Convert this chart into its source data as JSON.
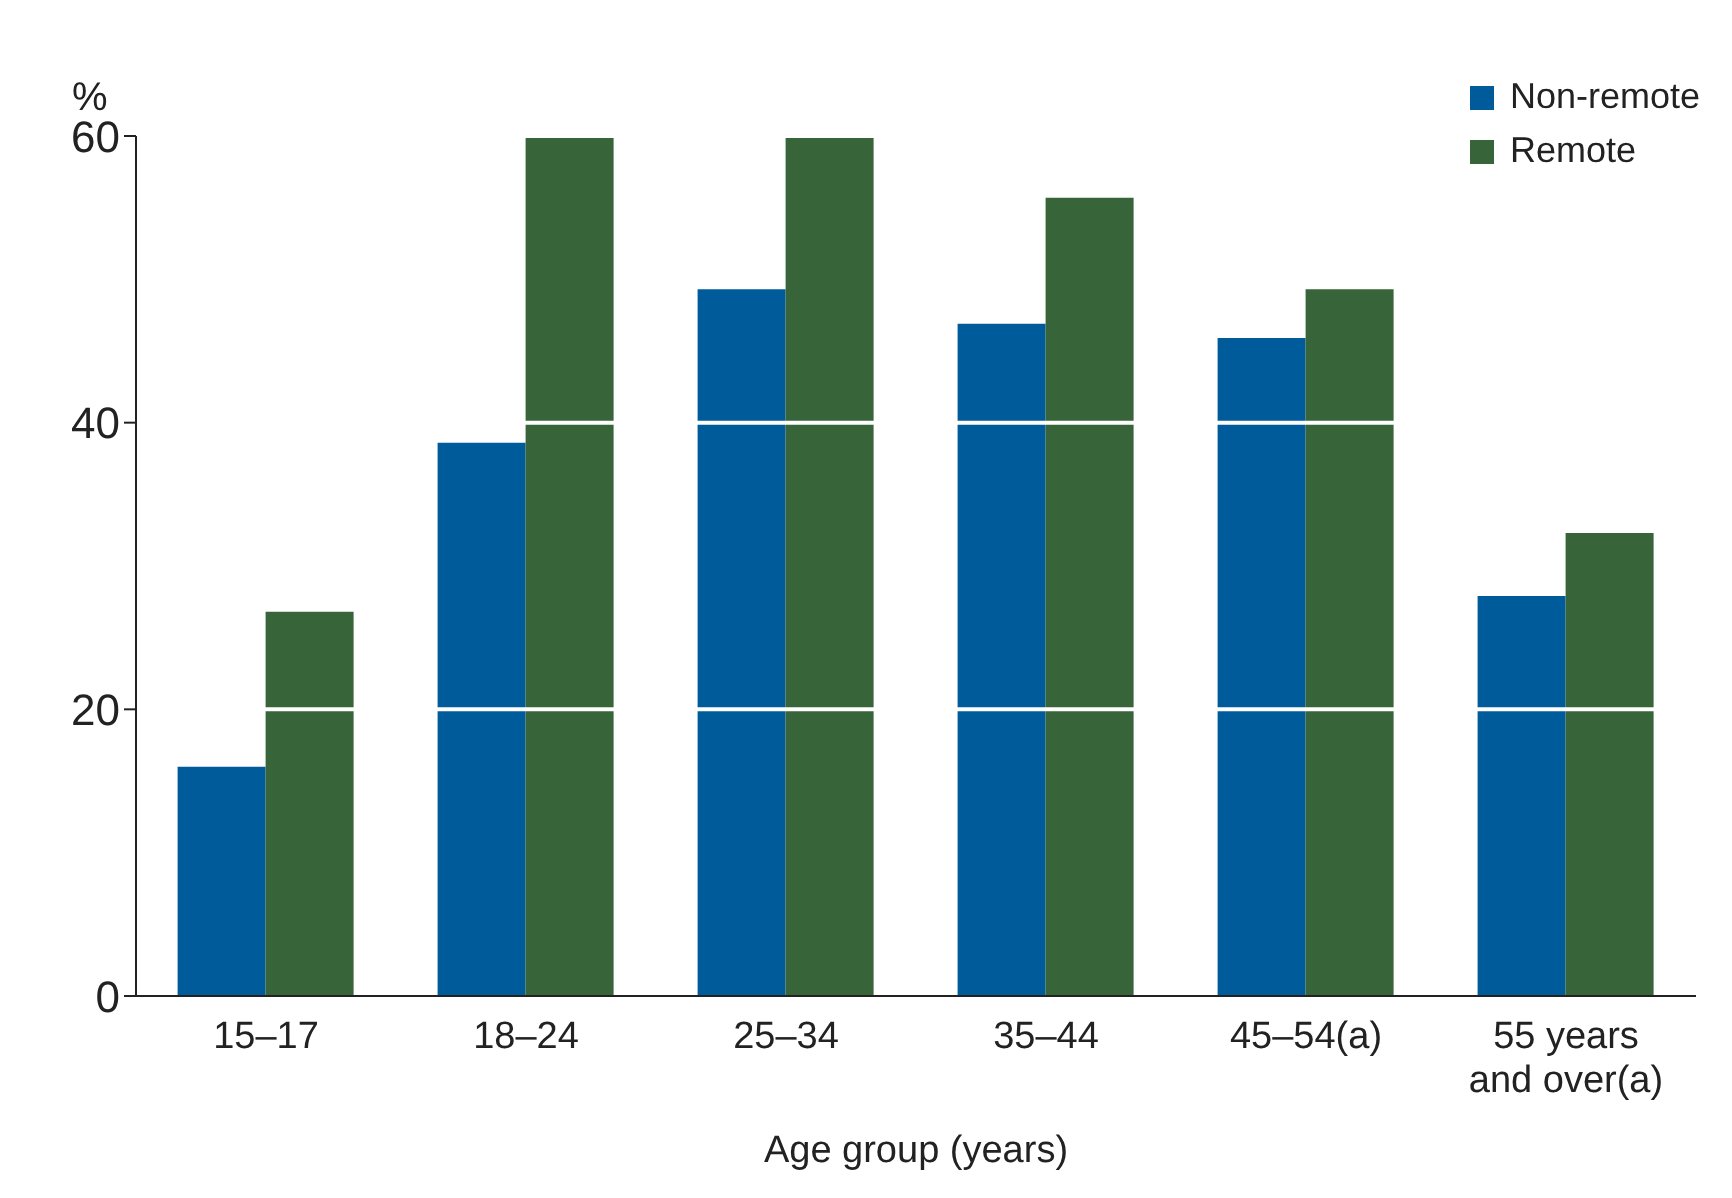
{
  "chart_data": {
    "type": "bar",
    "xlabel": "Age group (years)",
    "ylabel": "%",
    "categories": [
      "15–17",
      "18–24",
      "25–34",
      "35–44",
      "45–54(a)",
      "55 years and over(a)"
    ],
    "series": [
      {
        "name": "Non-remote",
        "color": "#005b9a",
        "values": [
          16,
          38.6,
          49.3,
          46.9,
          45.9,
          27.9
        ]
      },
      {
        "name": "Remote",
        "color": "#376439",
        "values": [
          26.8,
          60,
          60,
          55.7,
          49.3,
          32.3
        ]
      }
    ],
    "ylim": [
      0,
      60
    ],
    "yticks": [
      0,
      20,
      40,
      60
    ],
    "grid": "y",
    "legend": "top right"
  }
}
